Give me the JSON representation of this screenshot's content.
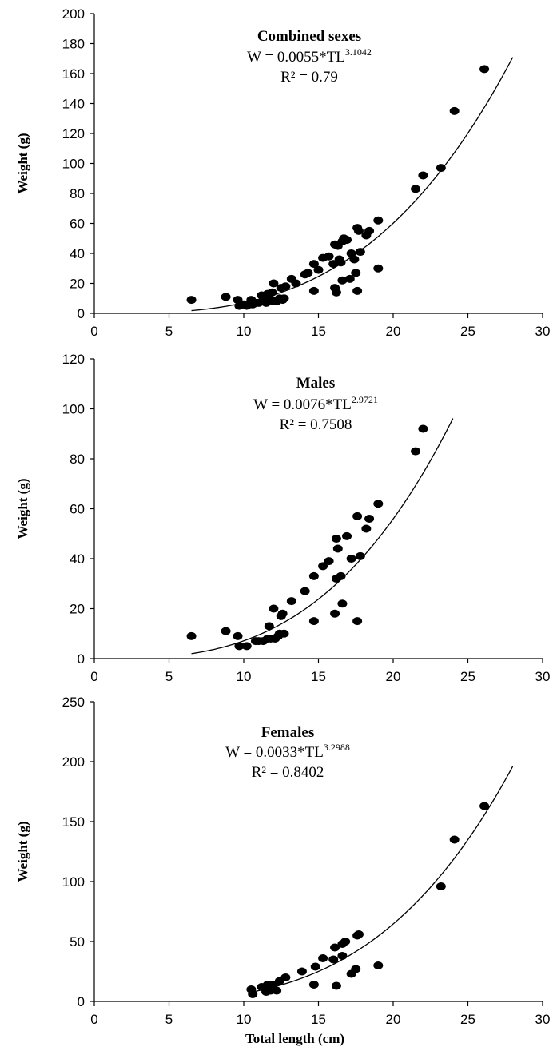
{
  "x_label": "Total length (cm)",
  "chart_data": [
    {
      "type": "scatter",
      "title": "Combined sexes",
      "equation": {
        "prefix": "W = 0.0055*TL",
        "exponent": "3.1042",
        "a": 0.0055,
        "b": 3.1042
      },
      "r_squared": "R² = 0.79",
      "xlabel": "",
      "ylabel": "Weight (g)",
      "xlim": [
        0,
        30
      ],
      "ylim": [
        0,
        200
      ],
      "xticks": [
        0,
        5,
        10,
        15,
        20,
        25,
        30
      ],
      "yticks": [
        0,
        20,
        40,
        60,
        80,
        100,
        120,
        140,
        160,
        180,
        200
      ],
      "fit_range": [
        6.5,
        28
      ],
      "points": [
        [
          6.5,
          9
        ],
        [
          8.8,
          11
        ],
        [
          9.6,
          9
        ],
        [
          9.7,
          5
        ],
        [
          10.0,
          6
        ],
        [
          10.2,
          5
        ],
        [
          10.5,
          9
        ],
        [
          10.6,
          6
        ],
        [
          10.8,
          7
        ],
        [
          11.0,
          7
        ],
        [
          11.2,
          12
        ],
        [
          11.4,
          8
        ],
        [
          11.5,
          7
        ],
        [
          11.6,
          13
        ],
        [
          11.8,
          9
        ],
        [
          11.9,
          14
        ],
        [
          12.0,
          20
        ],
        [
          12.0,
          8
        ],
        [
          12.2,
          8
        ],
        [
          12.3,
          9
        ],
        [
          12.4,
          10
        ],
        [
          12.5,
          17
        ],
        [
          12.6,
          9
        ],
        [
          12.7,
          10
        ],
        [
          12.8,
          18
        ],
        [
          13.2,
          23
        ],
        [
          13.5,
          20
        ],
        [
          14.1,
          26
        ],
        [
          14.3,
          27
        ],
        [
          14.7,
          33
        ],
        [
          14.7,
          15
        ],
        [
          15.0,
          29
        ],
        [
          15.3,
          37
        ],
        [
          15.7,
          38
        ],
        [
          16.0,
          33
        ],
        [
          16.1,
          17
        ],
        [
          16.1,
          46
        ],
        [
          16.2,
          14
        ],
        [
          16.3,
          45
        ],
        [
          16.4,
          36
        ],
        [
          16.5,
          34
        ],
        [
          16.6,
          22
        ],
        [
          16.6,
          48
        ],
        [
          16.7,
          50
        ],
        [
          16.9,
          49
        ],
        [
          17.1,
          23
        ],
        [
          17.2,
          40
        ],
        [
          17.4,
          36
        ],
        [
          17.5,
          27
        ],
        [
          17.6,
          57
        ],
        [
          17.6,
          15
        ],
        [
          17.7,
          55
        ],
        [
          17.8,
          41
        ],
        [
          18.2,
          52
        ],
        [
          18.4,
          55
        ],
        [
          19.0,
          62
        ],
        [
          19.0,
          30
        ],
        [
          21.5,
          83
        ],
        [
          22.0,
          92
        ],
        [
          23.2,
          97
        ],
        [
          24.1,
          135
        ],
        [
          26.1,
          163
        ]
      ]
    },
    {
      "type": "scatter",
      "title": "Males",
      "equation": {
        "prefix": "W = 0.0076*TL",
        "exponent": "2.9721",
        "a": 0.0076,
        "b": 2.9721
      },
      "r_squared": "R² = 0.7508",
      "xlabel": "",
      "ylabel": "Weight (g)",
      "xlim": [
        0,
        30
      ],
      "ylim": [
        0,
        120
      ],
      "xticks": [
        0,
        5,
        10,
        15,
        20,
        25,
        30
      ],
      "yticks": [
        0,
        20,
        40,
        60,
        80,
        100,
        120
      ],
      "fit_range": [
        6.5,
        24
      ],
      "points": [
        [
          6.5,
          9
        ],
        [
          8.8,
          11
        ],
        [
          9.6,
          9
        ],
        [
          9.7,
          5
        ],
        [
          10.2,
          5
        ],
        [
          10.8,
          7
        ],
        [
          11.0,
          7
        ],
        [
          11.3,
          7
        ],
        [
          11.6,
          8
        ],
        [
          11.7,
          13
        ],
        [
          11.8,
          8
        ],
        [
          12.0,
          20
        ],
        [
          12.1,
          8
        ],
        [
          12.3,
          9
        ],
        [
          12.4,
          10
        ],
        [
          12.5,
          17
        ],
        [
          12.6,
          18
        ],
        [
          12.7,
          10
        ],
        [
          13.2,
          23
        ],
        [
          14.1,
          27
        ],
        [
          14.7,
          33
        ],
        [
          14.7,
          15
        ],
        [
          15.3,
          37
        ],
        [
          15.7,
          39
        ],
        [
          16.1,
          18
        ],
        [
          16.2,
          32
        ],
        [
          16.2,
          48
        ],
        [
          16.3,
          44
        ],
        [
          16.5,
          33
        ],
        [
          16.6,
          22
        ],
        [
          16.9,
          49
        ],
        [
          17.2,
          40
        ],
        [
          17.6,
          57
        ],
        [
          17.6,
          15
        ],
        [
          17.8,
          41
        ],
        [
          18.2,
          52
        ],
        [
          18.4,
          56
        ],
        [
          19.0,
          62
        ],
        [
          21.5,
          83
        ],
        [
          22.0,
          92
        ]
      ]
    },
    {
      "type": "scatter",
      "title": "Females",
      "equation": {
        "prefix": "W = 0.0033*TL",
        "exponent": "3.2988",
        "a": 0.0033,
        "b": 3.2988
      },
      "r_squared": "R² = 0.8402",
      "xlabel": "Total length (cm)",
      "ylabel": "Weight (g)",
      "xlim": [
        0,
        30
      ],
      "ylim": [
        0,
        250
      ],
      "xticks": [
        0,
        5,
        10,
        15,
        20,
        25,
        30
      ],
      "yticks": [
        0,
        50,
        100,
        150,
        200,
        250
      ],
      "fit_range": [
        10.5,
        28
      ],
      "points": [
        [
          10.5,
          10
        ],
        [
          10.6,
          6
        ],
        [
          11.2,
          12
        ],
        [
          11.5,
          8
        ],
        [
          11.6,
          14
        ],
        [
          11.8,
          9
        ],
        [
          11.9,
          14
        ],
        [
          12.2,
          9
        ],
        [
          12.4,
          17
        ],
        [
          12.8,
          20
        ],
        [
          13.9,
          25
        ],
        [
          14.7,
          14
        ],
        [
          14.8,
          29
        ],
        [
          15.3,
          36
        ],
        [
          16.0,
          35
        ],
        [
          16.1,
          45
        ],
        [
          16.2,
          13
        ],
        [
          16.6,
          48
        ],
        [
          16.6,
          38
        ],
        [
          16.8,
          50
        ],
        [
          17.2,
          23
        ],
        [
          17.5,
          27
        ],
        [
          17.6,
          55
        ],
        [
          17.7,
          56
        ],
        [
          19.0,
          30
        ],
        [
          23.2,
          96
        ],
        [
          24.1,
          135
        ],
        [
          26.1,
          163
        ]
      ]
    }
  ]
}
